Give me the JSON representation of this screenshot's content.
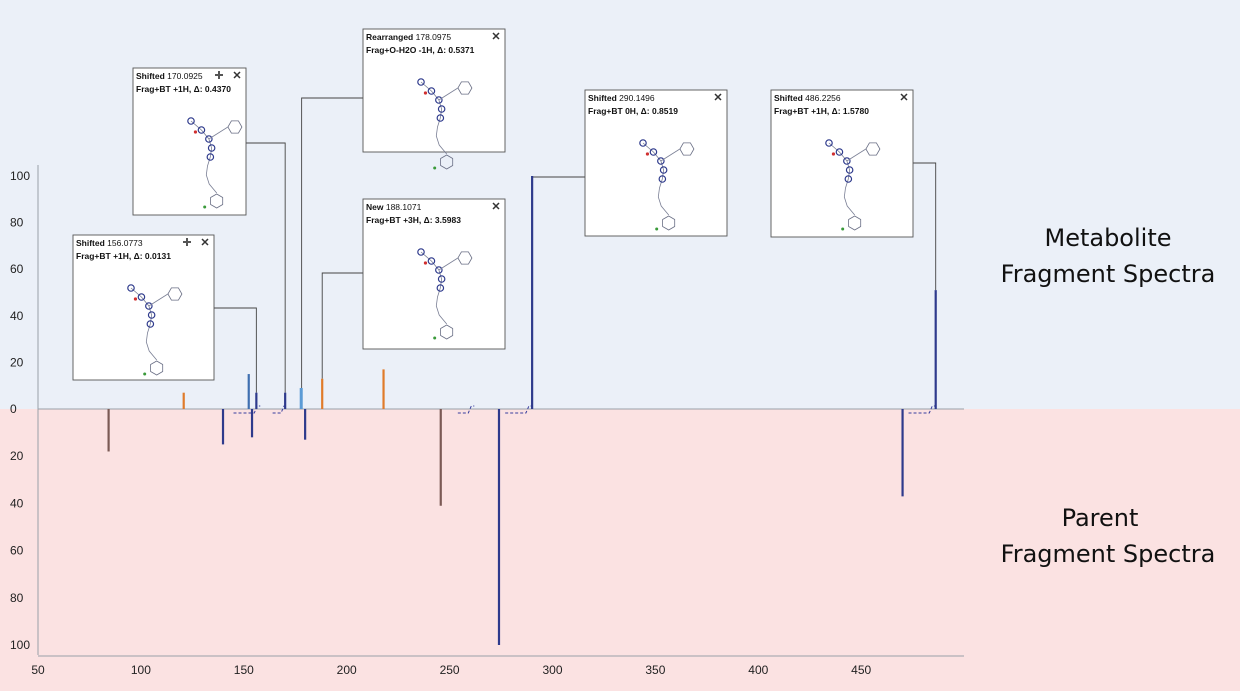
{
  "panels": {
    "metabolite_label": [
      "Metabolite",
      "Fragment Spectra"
    ],
    "parent_label": [
      "Parent",
      "Fragment Spectra"
    ],
    "metabolite_bg": "#ebf0f8",
    "parent_bg": "#fbe2e2"
  },
  "chart_data": {
    "type": "mirror-stick",
    "xlim": [
      50,
      500
    ],
    "x_ticks": [
      50,
      100,
      150,
      200,
      250,
      300,
      350,
      400,
      450
    ],
    "y_ticks_top": [
      0,
      20,
      40,
      60,
      80,
      100
    ],
    "y_ticks_bottom": [
      20,
      40,
      60,
      80,
      100
    ],
    "ylim": [
      0,
      100
    ],
    "colors": {
      "navy": "#2e3a8c",
      "blue": "#3f6fb0",
      "orange": "#e07b2a",
      "brown": "#7b5a55",
      "lightblue": "#5b9bd5"
    },
    "metabolite_peaks": [
      {
        "x": 120.8,
        "y": 7,
        "color": "orange"
      },
      {
        "x": 152.4,
        "y": 15,
        "color": "blue"
      },
      {
        "x": 156.1,
        "y": 7,
        "color": "navy"
      },
      {
        "x": 170.1,
        "y": 7,
        "color": "navy"
      },
      {
        "x": 177.7,
        "y": 9,
        "color": "lightblue"
      },
      {
        "x": 178.1,
        "y": 9,
        "color": "lightblue"
      },
      {
        "x": 188.1,
        "y": 13,
        "color": "orange"
      },
      {
        "x": 217.9,
        "y": 17,
        "color": "orange"
      },
      {
        "x": 290.1,
        "y": 100,
        "color": "navy"
      },
      {
        "x": 486.2,
        "y": 51,
        "color": "navy"
      }
    ],
    "parent_peaks": [
      {
        "x": 84.3,
        "y": 18,
        "color": "brown"
      },
      {
        "x": 139.9,
        "y": 15,
        "color": "navy"
      },
      {
        "x": 154.0,
        "y": 12,
        "color": "navy"
      },
      {
        "x": 179.8,
        "y": 13,
        "color": "navy"
      },
      {
        "x": 245.7,
        "y": 41,
        "color": "brown"
      },
      {
        "x": 274.0,
        "y": 100,
        "color": "navy"
      },
      {
        "x": 470.1,
        "y": 37,
        "color": "navy"
      }
    ],
    "annotations": [
      {
        "type": "Shifted",
        "mz": "156.0773",
        "detail": "Frag+BT +1H, Δ: 0.0131",
        "peak_x": 156.1,
        "has_plus": true
      },
      {
        "type": "Shifted",
        "mz": "170.0925",
        "detail": "Frag+BT +1H, Δ: 0.4370",
        "peak_x": 170.1,
        "has_plus": true
      },
      {
        "type": "Rearranged",
        "mz": "178.0975",
        "detail": "Frag+O-H2O -1H, Δ: 0.5371",
        "peak_x": 178.1,
        "has_plus": false
      },
      {
        "type": "New",
        "mz": "188.1071",
        "detail": "Frag+BT +3H, Δ: 3.5983",
        "peak_x": 188.1,
        "has_plus": false
      },
      {
        "type": "Shifted",
        "mz": "290.1496",
        "detail": "Frag+BT 0H, Δ: 0.8519",
        "peak_x": 290.1,
        "has_plus": false
      },
      {
        "type": "Shifted",
        "mz": "486.2256",
        "detail": "Frag+BT +1H, Δ: 1.5780",
        "peak_x": 486.2,
        "has_plus": false
      }
    ]
  }
}
